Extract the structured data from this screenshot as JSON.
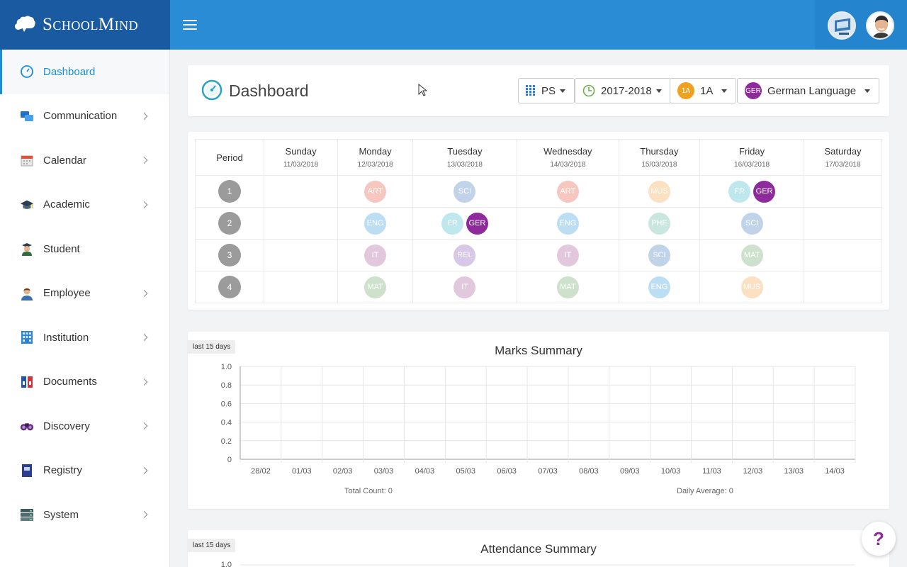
{
  "brand": {
    "name": "SchoolMind"
  },
  "sidebar": {
    "items": [
      {
        "label": "Dashboard",
        "icon": "dashboard-gauge-icon",
        "active": true,
        "chevron": false
      },
      {
        "label": "Communication",
        "icon": "chat-bubbles-icon",
        "chevron": true
      },
      {
        "label": "Calendar",
        "icon": "calendar-icon",
        "chevron": true
      },
      {
        "label": "Academic",
        "icon": "graduation-cap-icon",
        "chevron": true
      },
      {
        "label": "Student",
        "icon": "student-icon",
        "chevron": false
      },
      {
        "label": "Employee",
        "icon": "employee-icon",
        "chevron": true
      },
      {
        "label": "Institution",
        "icon": "building-icon",
        "chevron": true
      },
      {
        "label": "Documents",
        "icon": "binders-icon",
        "chevron": true
      },
      {
        "label": "Discovery",
        "icon": "binoculars-icon",
        "chevron": true
      },
      {
        "label": "Registry",
        "icon": "registry-book-icon",
        "chevron": true
      },
      {
        "label": "System",
        "icon": "server-stack-icon",
        "chevron": true
      }
    ]
  },
  "header": {
    "title": "Dashboard",
    "filters": {
      "level": "PS",
      "year": "2017-2018",
      "class_badge": "1A",
      "class": "1A",
      "subject_badge": "GER",
      "subject": "German Language"
    }
  },
  "timetable": {
    "period_header": "Period",
    "days": [
      {
        "name": "Sunday",
        "date": "11/03/2018"
      },
      {
        "name": "Monday",
        "date": "12/03/2018"
      },
      {
        "name": "Tuesday",
        "date": "13/03/2018"
      },
      {
        "name": "Wednesday",
        "date": "14/03/2018"
      },
      {
        "name": "Thursday",
        "date": "15/03/2018"
      },
      {
        "name": "Friday",
        "date": "16/03/2018"
      },
      {
        "name": "Saturday",
        "date": "17/03/2018"
      }
    ],
    "periods": [
      "1",
      "2",
      "3",
      "4"
    ],
    "colors": {
      "ART": "#ef9a8a",
      "SCI": "#8fb0d8",
      "MUS": "#f8c891",
      "FR": "#8ad6e0",
      "GER": "#8e2a9b",
      "ENG": "#86c4ea",
      "PHE": "#9fd4c6",
      "IT": "#c99cc0",
      "REL": "#b79ad8",
      "MAT": "#a5c9a3"
    },
    "cells": [
      [
        [],
        [
          "ART"
        ],
        [
          "SCI"
        ],
        [
          "ART"
        ],
        [
          "MUS"
        ],
        [
          "FR",
          "GER"
        ],
        []
      ],
      [
        [],
        [
          "ENG"
        ],
        [
          "FR",
          "GER"
        ],
        [
          "ENG"
        ],
        [
          "PHE"
        ],
        [
          "SCI"
        ],
        []
      ],
      [
        [],
        [
          "IT"
        ],
        [
          "REL"
        ],
        [
          "IT"
        ],
        [
          "SCI"
        ],
        [
          "MAT"
        ],
        []
      ],
      [
        [],
        [
          "MAT"
        ],
        [
          "IT"
        ],
        [
          "MAT"
        ],
        [
          "ENG"
        ],
        [
          "MUS"
        ],
        []
      ]
    ],
    "highlight": "GER"
  },
  "marks": {
    "badge": "last 15 days",
    "total_label": "Total Count: 0",
    "avg_label": "Daily Average: 0"
  },
  "attendance": {
    "badge": "last 15 days",
    "top_tick": "1.0"
  },
  "chart_data": {
    "type": "bar",
    "title": "Marks Summary",
    "categories": [
      "28/02",
      "01/03",
      "02/03",
      "03/03",
      "04/03",
      "05/03",
      "06/03",
      "07/03",
      "08/03",
      "09/03",
      "10/03",
      "11/03",
      "12/03",
      "13/03",
      "14/03"
    ],
    "values": [
      0,
      0,
      0,
      0,
      0,
      0,
      0,
      0,
      0,
      0,
      0,
      0,
      0,
      0,
      0
    ],
    "yticks": [
      "0",
      "0.2",
      "0.4",
      "0.6",
      "0.8",
      "1.0"
    ],
    "ylim": [
      0,
      1
    ],
    "grid": true
  },
  "attendance_chart_title": "Attendance Summary",
  "help": {
    "label": "?"
  }
}
